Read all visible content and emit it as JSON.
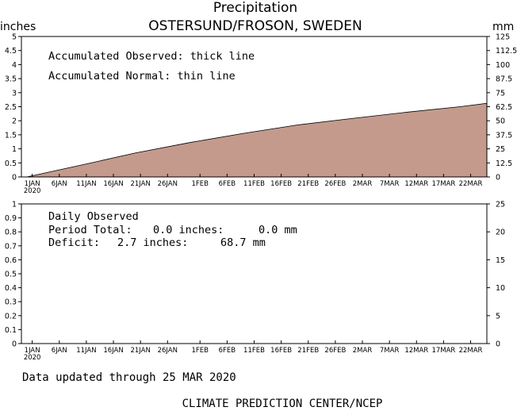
{
  "header": {
    "title": "Precipitation",
    "station": "OSTERSUND/FROSON, SWEDEN",
    "left_unit": "inches",
    "right_unit": "mm"
  },
  "top_notes": {
    "observed": "Accumulated Observed: thick line",
    "normal": "Accumulated Normal: thin line"
  },
  "bottom_notes": {
    "title": "Daily Observed",
    "period_label": "Period Total:",
    "period_in": "0.0 inches:",
    "period_mm": "0.0 mm",
    "deficit_label": "Deficit:",
    "deficit_in": "2.7 inches:",
    "deficit_mm": "68.7 mm"
  },
  "footer": {
    "updated": "Data updated through 25 MAR 2020",
    "credit": "CLIMATE PREDICTION CENTER/NCEP"
  },
  "colors": {
    "normal_fill": "#c49a8c",
    "axis": "#000000"
  },
  "chart_data": [
    {
      "type": "area",
      "title": "Precipitation",
      "subtitle": "OSTERSUND/FROSON, SWEDEN",
      "ylabel": "inches",
      "y2label": "mm",
      "ylim": [
        0,
        5
      ],
      "y2lim": [
        0,
        125
      ],
      "yticks": [
        "0",
        "0.5",
        "1",
        "1.5",
        "2",
        "2.5",
        "3",
        "3.5",
        "4",
        "4.5",
        "5"
      ],
      "y2ticks": [
        "0",
        "12.5",
        "25",
        "37.5",
        "50",
        "62.5",
        "75",
        "87.5",
        "100",
        "112.5",
        "125"
      ],
      "xticks": [
        "1JAN",
        "6JAN",
        "11JAN",
        "16JAN",
        "21JAN",
        "26JAN",
        "1FEB",
        "6FEB",
        "11FEB",
        "16FEB",
        "21FEB",
        "26FEB",
        "2MAR",
        "7MAR",
        "12MAR",
        "17MAR",
        "22MAR"
      ],
      "xtick_days": [
        1,
        6,
        11,
        16,
        21,
        26,
        32,
        37,
        42,
        47,
        52,
        57,
        62,
        67,
        72,
        77,
        82
      ],
      "year_label": "2020",
      "xlim_days": [
        -1,
        85
      ],
      "series": [
        {
          "name": "Accumulated Normal",
          "x_days": [
            0,
            10,
            20,
            30,
            40,
            50,
            60,
            70,
            80,
            85
          ],
          "y_inches": [
            0,
            0.42,
            0.85,
            1.22,
            1.55,
            1.85,
            2.08,
            2.3,
            2.5,
            2.62
          ]
        }
      ],
      "grid": false
    },
    {
      "type": "bar",
      "title": "Daily Observed",
      "ylim": [
        0,
        1
      ],
      "y2lim": [
        0,
        25
      ],
      "yticks": [
        "0",
        "0.1",
        "0.2",
        "0.3",
        "0.4",
        "0.5",
        "0.6",
        "0.7",
        "0.8",
        "0.9",
        "1"
      ],
      "y2ticks": [
        "0",
        "5",
        "10",
        "15",
        "20",
        "25"
      ],
      "xticks": [
        "1JAN",
        "6JAN",
        "11JAN",
        "16JAN",
        "21JAN",
        "26JAN",
        "1FEB",
        "6FEB",
        "11FEB",
        "16FEB",
        "21FEB",
        "26FEB",
        "2MAR",
        "7MAR",
        "12MAR",
        "17MAR",
        "22MAR"
      ],
      "xtick_days": [
        1,
        6,
        11,
        16,
        21,
        26,
        32,
        37,
        42,
        47,
        52,
        57,
        62,
        67,
        72,
        77,
        82
      ],
      "year_label": "2020",
      "xlim_days": [
        -1,
        85
      ],
      "values": [],
      "grid": false
    }
  ]
}
